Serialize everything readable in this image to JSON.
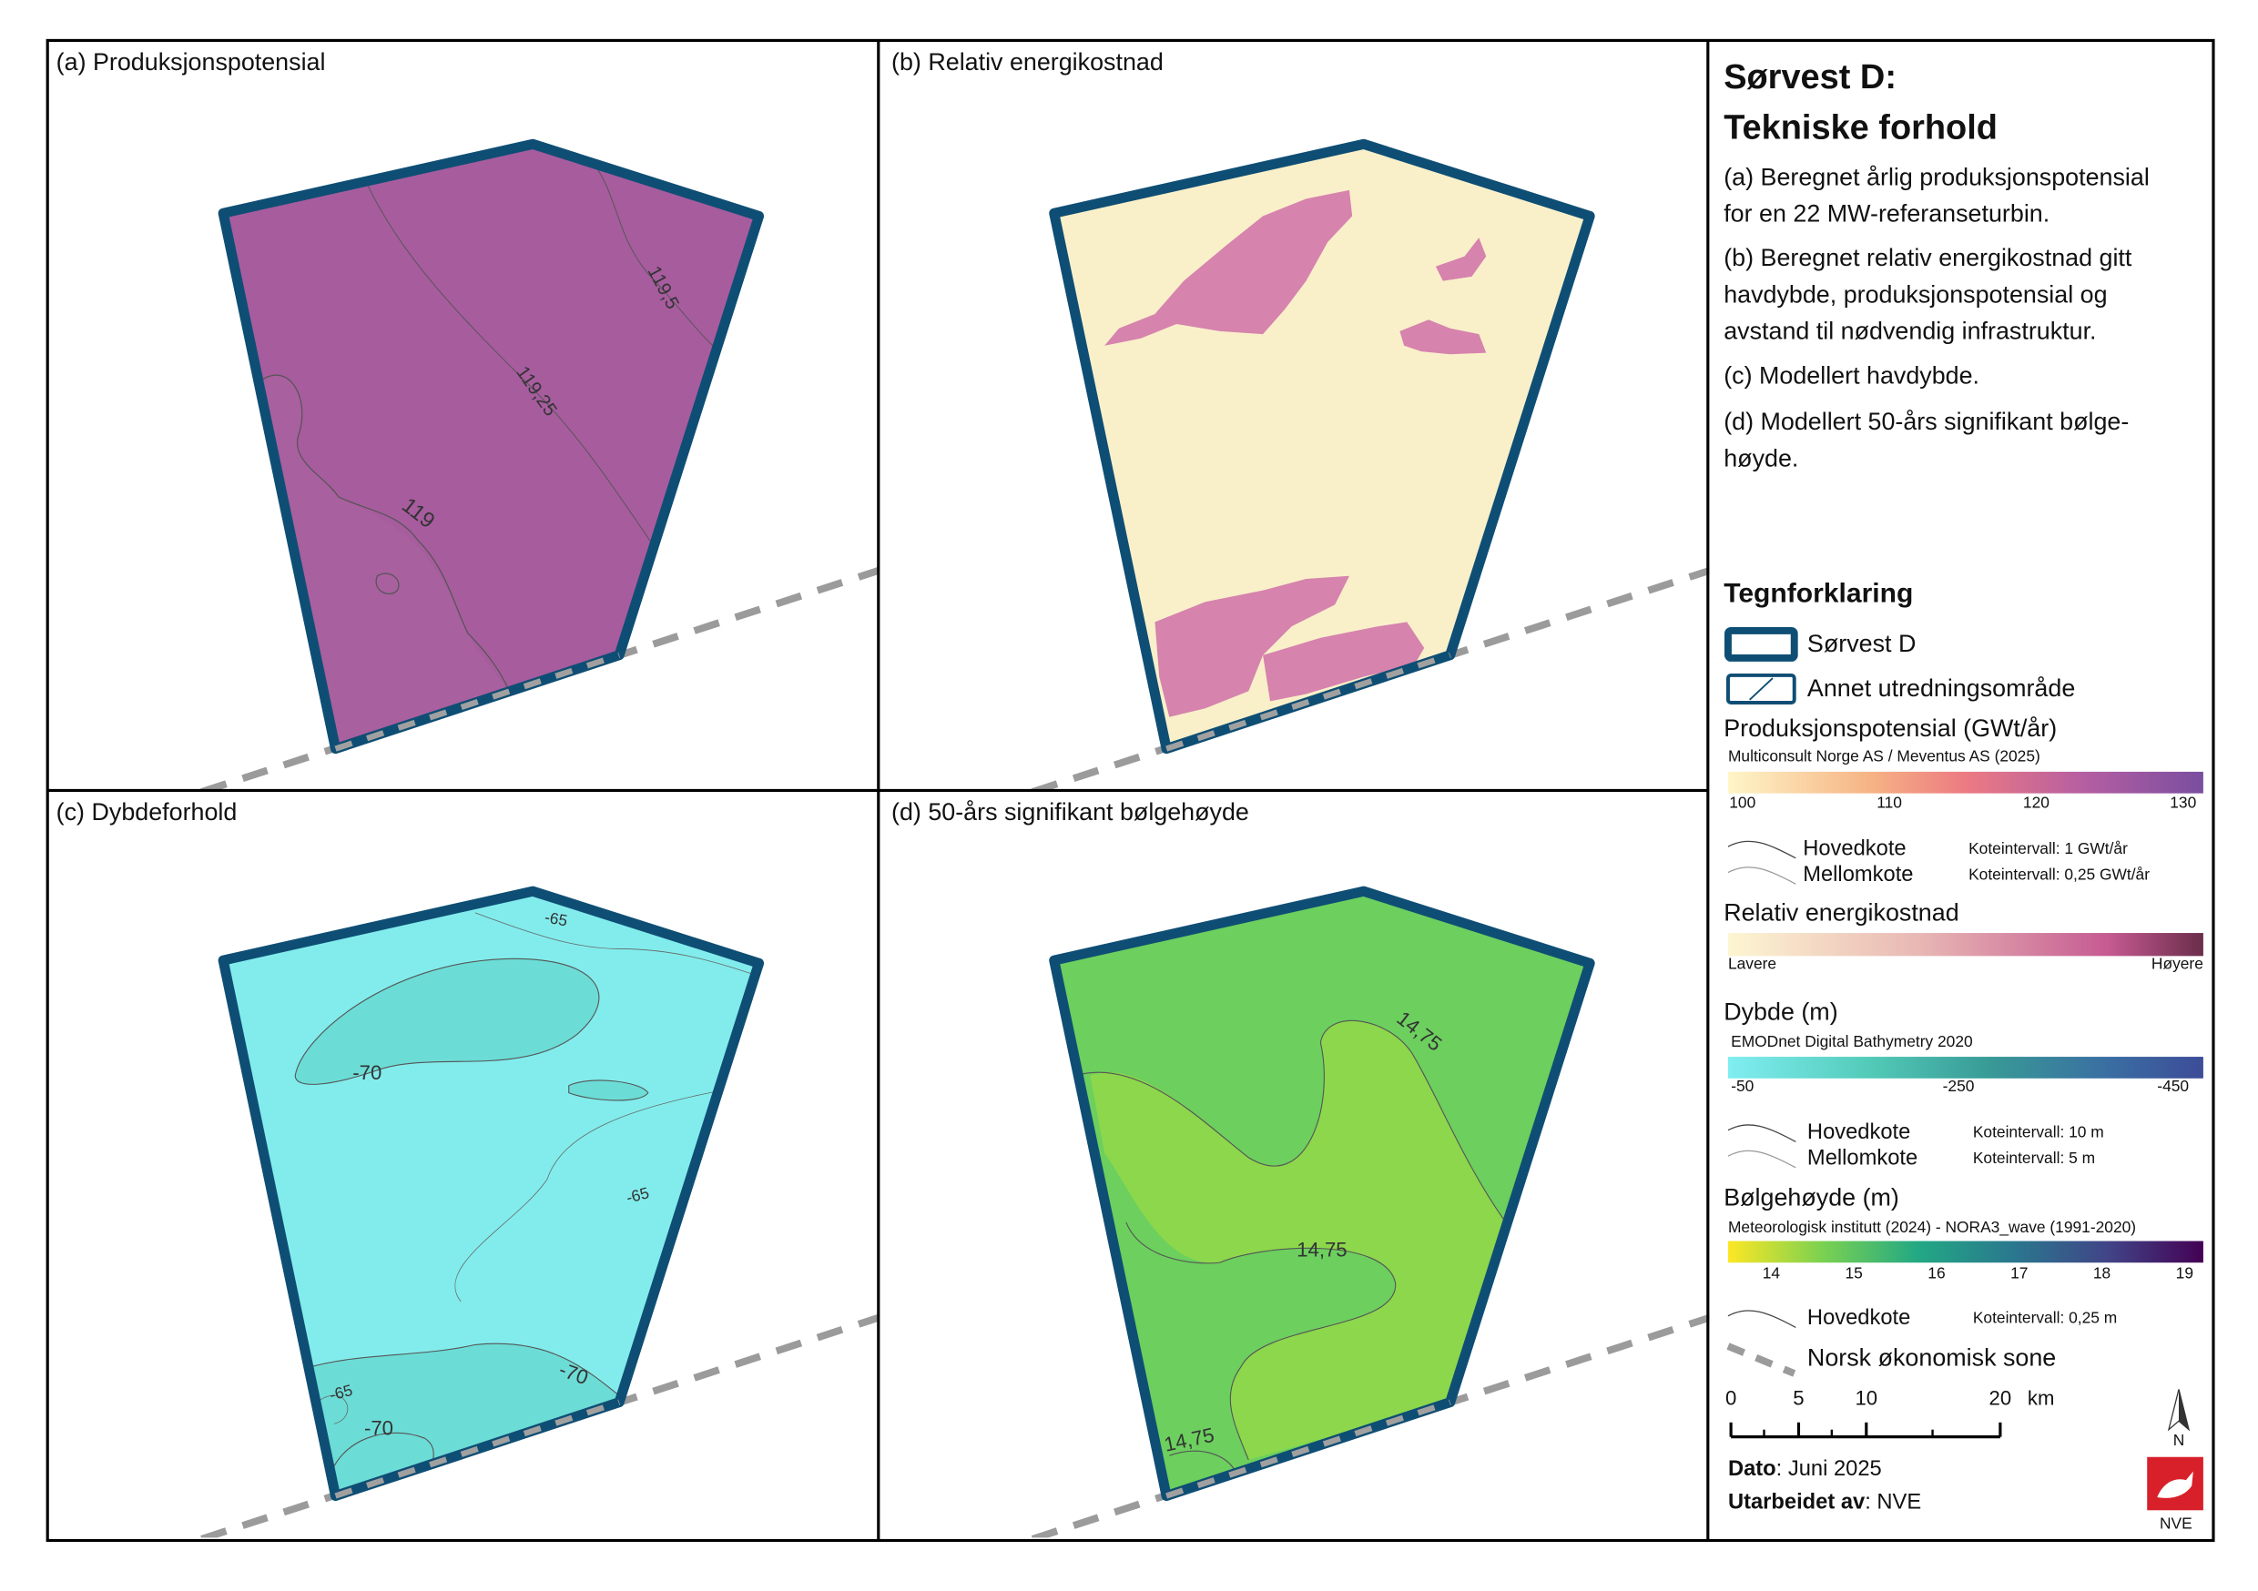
{
  "panels": [
    {
      "title": "(a) Produksjonspotensial",
      "contour_labels": [
        "119,5",
        "119,25",
        "119"
      ]
    },
    {
      "title": "(b) Relativ energikostnad"
    },
    {
      "title": "(c) Dybdeforhold",
      "contour_labels": [
        "-65",
        "-70",
        "-65",
        "-65",
        "-70",
        "-70"
      ]
    },
    {
      "title": "(d) 50-års signifikant bølgehøyde",
      "contour_labels": [
        "14,75",
        "14,75",
        "14,75"
      ]
    }
  ],
  "sidebar": {
    "title": [
      "Sørvest D:",
      "Tekniske forhold"
    ],
    "descriptions": [
      [
        "(a) Beregnet årlig produksjonspotensial",
        "for en 22 MW-referanseturbin."
      ],
      [
        "(b) Beregnet relativ energikostnad gitt",
        "havdybde, produksjonspotensial og",
        "avstand til nødvendig infrastruktur."
      ],
      [
        "(c) Modellert havdybde."
      ],
      [
        "(d) Modellert 50-års signifikant bølge-",
        "høyde."
      ]
    ],
    "legend_title": "Tegnforklaring",
    "area_items": [
      "Sørvest D",
      "Annet utredningsområde"
    ],
    "production": {
      "title": "Produksjonspotensial (GWt/år)",
      "source": "Multiconsult Norge AS / Meventus AS (2025)",
      "ticks": [
        "100",
        "110",
        "120",
        "130"
      ],
      "contours": [
        {
          "name": "Hovedkote",
          "interval": "Koteintervall: 1 GWt/år"
        },
        {
          "name": "Mellomkote",
          "interval": "Koteintervall: 0,25 GWt/år"
        }
      ]
    },
    "cost": {
      "title": "Relativ energikostnad",
      "low": "Lavere",
      "high": "Høyere"
    },
    "depth": {
      "title": "Dybde (m)",
      "source": "EMODnet Digital Bathymetry 2020",
      "ticks": [
        "-50",
        "-250",
        "-450"
      ],
      "contours": [
        {
          "name": "Hovedkote",
          "interval": "Koteintervall: 10 m"
        },
        {
          "name": "Mellomkote",
          "interval": "Koteintervall: 5 m"
        }
      ]
    },
    "wave": {
      "title": "Bølgehøyde (m)",
      "source": "Meteorologisk institutt (2024) - NORA3_wave (1991-2020)",
      "ticks": [
        "14",
        "15",
        "16",
        "17",
        "18",
        "19"
      ],
      "contours": [
        {
          "name": "Hovedkote",
          "interval": "Koteintervall: 0,25 m"
        }
      ]
    },
    "eez": "Norsk økonomisk sone",
    "scale": {
      "ticks": [
        "0",
        "5",
        "10",
        "20"
      ],
      "unit": "km"
    },
    "north": "N",
    "date": {
      "label": "Dato",
      "text": ": Juni 2025"
    },
    "author": {
      "label": "Utarbeidet av",
      "text": ": NVE"
    },
    "logo": "NVE"
  }
}
